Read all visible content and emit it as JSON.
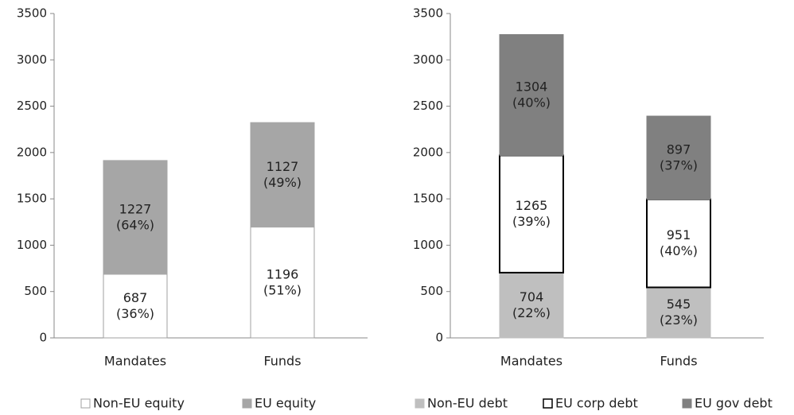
{
  "chart_data": [
    {
      "type": "bar",
      "categories": [
        "Mandates",
        "Funds"
      ],
      "ylim": [
        0,
        3500
      ],
      "yticks": [
        0,
        500,
        1000,
        1500,
        2000,
        2500,
        3000,
        3500
      ],
      "series": [
        {
          "name": "Non-EU equity",
          "color": "#ffffff",
          "edgecolor": "#a0a0a0",
          "values": [
            687,
            1196
          ],
          "value_labels": [
            "687 (36%)",
            "1196 (51%)"
          ]
        },
        {
          "name": "EU equity",
          "color": "#a6a6a6",
          "edgecolor": "#a6a6a6",
          "values": [
            1227,
            1127
          ],
          "value_labels": [
            "1227 (64%)",
            "1127 (49%)"
          ]
        }
      ]
    },
    {
      "type": "bar",
      "categories": [
        "Mandates",
        "Funds"
      ],
      "ylim": [
        0,
        3500
      ],
      "yticks": [
        0,
        500,
        1000,
        1500,
        2000,
        2500,
        3000,
        3500
      ],
      "series": [
        {
          "name": "Non-EU debt",
          "color": "#bfbfbf",
          "edgecolor": "#bfbfbf",
          "values": [
            704,
            545
          ],
          "value_labels": [
            "704 (22%)",
            "545 (23%)"
          ]
        },
        {
          "name": "EU corp debt",
          "color": "#ffffff",
          "edgecolor": "#000000",
          "values": [
            1265,
            951
          ],
          "value_labels": [
            "1265 (39%)",
            "951 (40%)"
          ]
        },
        {
          "name": "EU gov debt",
          "color": "#808080",
          "edgecolor": "#808080",
          "values": [
            1304,
            897
          ],
          "value_labels": [
            "1304 (40%)",
            "897 (37%)"
          ]
        }
      ]
    }
  ]
}
